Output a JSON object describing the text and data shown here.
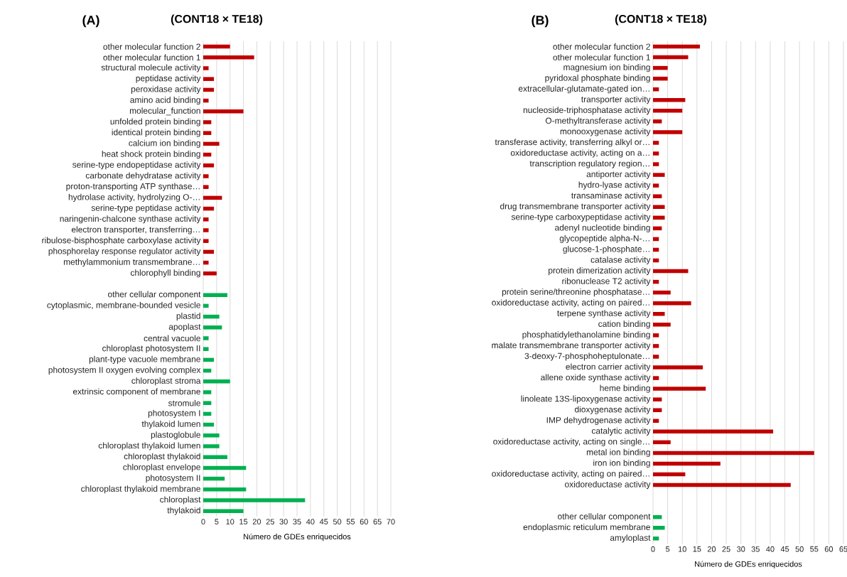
{
  "chart_data": [
    {
      "type": "bar",
      "orientation": "horizontal",
      "title": "(CONT18 × TE18)",
      "annotations": [
        "(A)"
      ],
      "xlabel": "Número de GDEs enriquecidos",
      "grid": "x",
      "xlim": [
        0,
        70
      ],
      "xticks": [
        0,
        5,
        10,
        15,
        20,
        25,
        30,
        35,
        40,
        45,
        50,
        55,
        60,
        65,
        70
      ],
      "categories": [
        "other molecular function 2",
        "other molecular function 1",
        "structural molecule activity",
        "peptidase activity",
        "peroxidase activity",
        "amino acid binding",
        "molecular_function",
        "unfolded protein binding",
        "identical protein binding",
        "calcium ion binding",
        "heat shock protein binding",
        "serine-type endopeptidase activity",
        "carbonate dehydratase activity",
        "proton-transporting ATP synthase…",
        "hydrolase activity, hydrolyzing O-…",
        "serine-type peptidase activity",
        "naringenin-chalcone synthase activity",
        "electron transporter, transferring…",
        "ribulose-bisphosphate carboxylase activity",
        "phosphorelay response regulator activity",
        "methylammonium transmembrane…",
        "chlorophyll binding",
        null,
        "other cellular component",
        "cytoplasmic, membrane-bounded vesicle",
        "plastid",
        "apoplast",
        "central vacuole",
        "chloroplast photosystem II",
        "plant-type vacuole membrane",
        "photosystem II oxygen evolving complex",
        "chloroplast stroma",
        "extrinsic component of membrane",
        "stromule",
        "photosystem I",
        "thylakoid lumen",
        "plastoglobule",
        "chloroplast thylakoid lumen",
        "chloroplast thylakoid",
        "chloroplast envelope",
        "photosystem II",
        "chloroplast thylakoid membrane",
        "chloroplast",
        "thylakoid"
      ],
      "values": [
        10,
        19,
        2,
        4,
        4,
        2,
        15,
        3,
        3,
        6,
        3,
        4,
        2,
        2,
        7,
        4,
        2,
        2,
        2,
        4,
        2,
        5,
        null,
        9,
        2,
        6,
        7,
        2,
        2,
        4,
        3,
        10,
        3,
        3,
        3,
        4,
        6,
        6,
        9,
        16,
        8,
        16,
        38,
        15
      ],
      "colors": [
        "#c00000",
        "#c00000",
        "#c00000",
        "#c00000",
        "#c00000",
        "#c00000",
        "#c00000",
        "#c00000",
        "#c00000",
        "#c00000",
        "#c00000",
        "#c00000",
        "#c00000",
        "#c00000",
        "#c00000",
        "#c00000",
        "#c00000",
        "#c00000",
        "#c00000",
        "#c00000",
        "#c00000",
        "#c00000",
        null,
        "#00b050",
        "#00b050",
        "#00b050",
        "#00b050",
        "#00b050",
        "#00b050",
        "#00b050",
        "#00b050",
        "#00b050",
        "#00b050",
        "#00b050",
        "#00b050",
        "#00b050",
        "#00b050",
        "#00b050",
        "#00b050",
        "#00b050",
        "#00b050",
        "#00b050",
        "#00b050",
        "#00b050"
      ]
    },
    {
      "type": "bar",
      "orientation": "horizontal",
      "title": "(CONT18 × TE18)",
      "annotations": [
        "(B)"
      ],
      "xlabel": "Número de GDEs enriquecidos",
      "grid": "x",
      "xlim": [
        0,
        65
      ],
      "xticks": [
        0,
        5,
        10,
        15,
        20,
        25,
        30,
        35,
        40,
        45,
        50,
        55,
        60,
        65
      ],
      "categories": [
        "other molecular function 2",
        "other molecular function 1",
        "magnesium ion binding",
        "pyridoxal phosphate binding",
        "extracellular-glutamate-gated ion…",
        "transporter activity",
        "nucleoside-triphosphatase activity",
        "O-methyltransferase activity",
        "monooxygenase activity",
        "transferase activity, transferring alkyl or…",
        "oxidoreductase activity, acting on a…",
        "transcription regulatory region…",
        "antiporter activity",
        "hydro-lyase activity",
        "transaminase activity",
        "drug transmembrane transporter activity",
        "serine-type carboxypeptidase activity",
        "adenyl nucleotide binding",
        "glycopeptide alpha-N-…",
        "glucose-1-phosphate…",
        "catalase activity",
        "protein dimerization activity",
        "ribonuclease T2 activity",
        "protein serine/threonine phosphatase…",
        "oxidoreductase activity, acting on paired…",
        "terpene synthase activity",
        "cation binding",
        "phosphatidylethanolamine binding",
        "malate transmembrane transporter activity",
        "3-deoxy-7-phosphoheptulonate…",
        "electron carrier activity",
        "allene oxide synthase activity",
        "heme binding",
        "linoleate 13S-lipoxygenase activity",
        "dioxygenase activity",
        "IMP dehydrogenase activity",
        "catalytic activity",
        "oxidoreductase activity, acting on single…",
        "metal ion binding",
        "iron ion binding",
        "oxidoreductase activity, acting on paired…",
        "oxidoreductase activity",
        null,
        null,
        "other cellular component",
        "endoplasmic reticulum membrane",
        "amyloplast"
      ],
      "values": [
        16,
        12,
        5,
        5,
        2,
        11,
        10,
        3,
        10,
        2,
        2,
        2,
        4,
        2,
        3,
        4,
        4,
        3,
        2,
        2,
        2,
        12,
        2,
        6,
        13,
        4,
        6,
        2,
        2,
        2,
        17,
        2,
        18,
        3,
        3,
        2,
        41,
        6,
        55,
        23,
        11,
        47,
        null,
        null,
        3,
        4,
        2
      ],
      "colors": [
        "#c00000",
        "#c00000",
        "#c00000",
        "#c00000",
        "#c00000",
        "#c00000",
        "#c00000",
        "#c00000",
        "#c00000",
        "#c00000",
        "#c00000",
        "#c00000",
        "#c00000",
        "#c00000",
        "#c00000",
        "#c00000",
        "#c00000",
        "#c00000",
        "#c00000",
        "#c00000",
        "#c00000",
        "#c00000",
        "#c00000",
        "#c00000",
        "#c00000",
        "#c00000",
        "#c00000",
        "#c00000",
        "#c00000",
        "#c00000",
        "#c00000",
        "#c00000",
        "#c00000",
        "#c00000",
        "#c00000",
        "#c00000",
        "#c00000",
        "#c00000",
        "#c00000",
        "#c00000",
        "#c00000",
        "#c00000",
        null,
        null,
        "#00b050",
        "#00b050",
        "#00b050"
      ]
    }
  ]
}
